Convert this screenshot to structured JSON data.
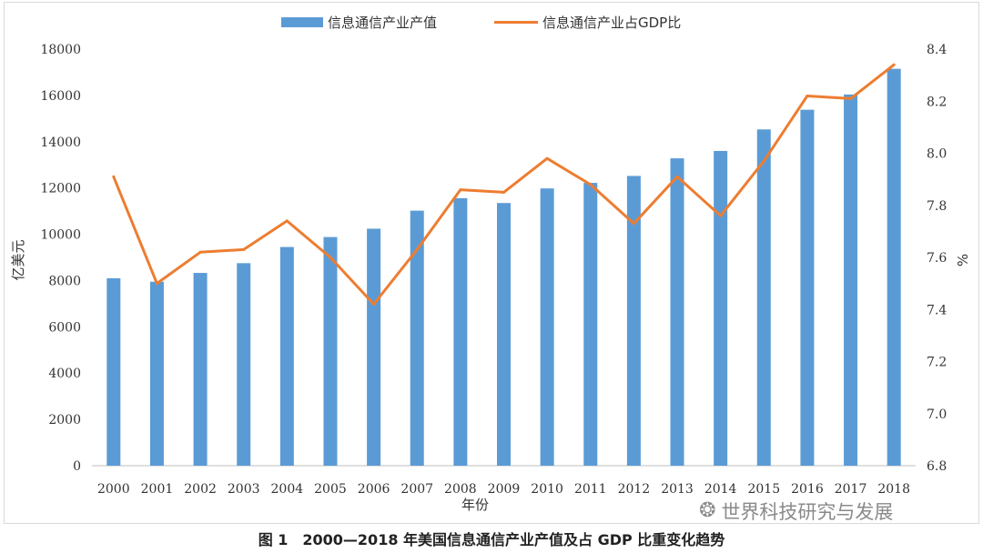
{
  "chart_data": {
    "type": "bar+line",
    "categories": [
      "2000",
      "2001",
      "2002",
      "2003",
      "2004",
      "2005",
      "2006",
      "2007",
      "2008",
      "2009",
      "2010",
      "2011",
      "2012",
      "2013",
      "2014",
      "2015",
      "2016",
      "2017",
      "2018"
    ],
    "series": [
      {
        "name": "信息通信产业产值",
        "type": "bar",
        "axis": "left",
        "color": "#5b9bd5",
        "values": [
          8100,
          7950,
          8330,
          8750,
          9450,
          9880,
          10240,
          11020,
          11560,
          11350,
          11980,
          12220,
          12520,
          13280,
          13600,
          14530,
          15380,
          16040,
          17150
        ]
      },
      {
        "name": "信息通信产业占GDP比",
        "type": "line",
        "axis": "right",
        "color": "#ed7d31",
        "values": [
          7.91,
          7.5,
          7.62,
          7.63,
          7.74,
          7.6,
          7.42,
          7.63,
          7.86,
          7.85,
          7.98,
          7.88,
          7.73,
          7.91,
          7.76,
          7.97,
          8.22,
          8.21,
          8.34
        ]
      }
    ],
    "xlabel": "年份",
    "ylabel_left": "亿美元",
    "ylabel_right": "%",
    "ylim_left": [
      0,
      18000
    ],
    "yticks_left": [
      "0",
      "2000",
      "4000",
      "6000",
      "8000",
      "10000",
      "12000",
      "14000",
      "16000",
      "18000"
    ],
    "ylim_right": [
      6.8,
      8.4
    ],
    "yticks_right": [
      "6.8",
      "7.0",
      "7.2",
      "7.4",
      "7.6",
      "7.8",
      "8.0",
      "8.2",
      "8.4"
    ],
    "legend_position": "top-center",
    "grid": false
  },
  "watermark": {
    "icon": "wechat-icon",
    "icon_glyph": "❂",
    "text": "世界科技研究与发展"
  },
  "caption": "图 1　2000—2018 年美国信息通信产业产值及占 GDP 比重变化趋势"
}
